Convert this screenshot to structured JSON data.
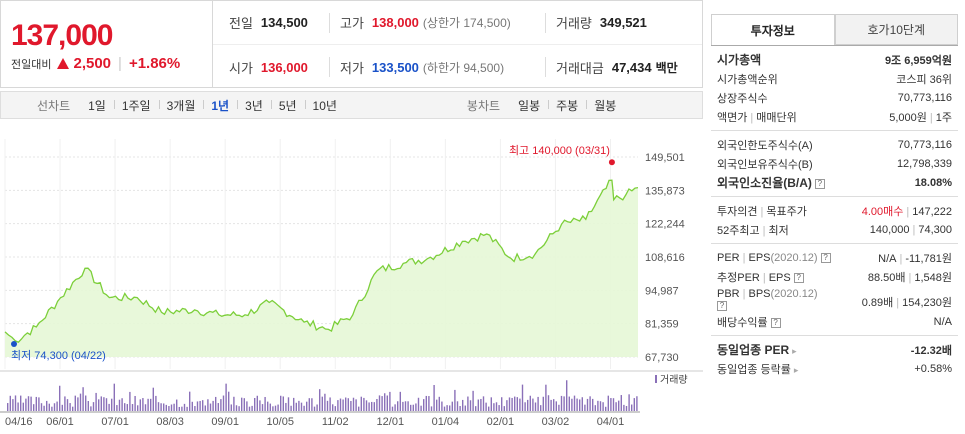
{
  "header": {
    "price": "137,000",
    "change_label": "전일대비",
    "change_amount": "2,500",
    "change_percent": "+1.86%",
    "up_color": "#e0182c",
    "down_color": "#1a52c8"
  },
  "stats": {
    "prev_close_label": "전일",
    "prev_close": "134,500",
    "high_label": "고가",
    "high": "138,000",
    "upper_limit": "(상한가 174,500)",
    "volume_label": "거래량",
    "volume": "349,521",
    "open_label": "시가",
    "open": "136,000",
    "low_label": "저가",
    "low": "133,500",
    "lower_limit": "(하한가 94,500)",
    "value_label": "거래대금",
    "value": "47,434",
    "value_unit": "백만"
  },
  "periods": {
    "line_label": "선차트",
    "line_items": [
      "1일",
      "1주일",
      "3개월",
      "1년",
      "3년",
      "5년",
      "10년"
    ],
    "selected": "1년",
    "candle_label": "봉차트",
    "candle_items": [
      "일봉",
      "주봉",
      "월봉"
    ]
  },
  "chart_data": {
    "type": "area",
    "x": [
      "2020-04-16",
      "2020-04-22",
      "2020-05-04",
      "2020-05-18",
      "2020-06-01",
      "2020-06-15",
      "2020-07-01",
      "2020-07-15",
      "2020-08-03",
      "2020-08-17",
      "2020-09-01",
      "2020-09-15",
      "2020-10-05",
      "2020-10-19",
      "2020-11-02",
      "2020-11-16",
      "2020-12-01",
      "2020-12-15",
      "2021-01-04",
      "2021-01-18",
      "2021-02-01",
      "2021-02-15",
      "2021-03-02",
      "2021-03-16",
      "2021-03-31",
      "2021-04-01",
      "2021-04-08",
      "2021-04-15"
    ],
    "values": [
      78000,
      74300,
      80000,
      92000,
      104000,
      92000,
      92000,
      86000,
      87000,
      85000,
      85000,
      90000,
      82000,
      79000,
      85000,
      103000,
      106000,
      108000,
      115000,
      118000,
      108000,
      110000,
      122000,
      124000,
      140000,
      132000,
      134000,
      137000
    ],
    "y_ticks": [
      "149,501",
      "135,873",
      "122,244",
      "108,616",
      "94,987",
      "81,359",
      "67,730"
    ],
    "x_ticks": [
      "04/16",
      "06/01",
      "07/01",
      "08/03",
      "09/01",
      "10/05",
      "11/02",
      "12/01",
      "01/04",
      "02/01",
      "03/02",
      "04/01"
    ],
    "ylim": [
      67730,
      149501
    ],
    "high_annotation": "최고 140,000 (03/31)",
    "low_annotation": "최저 74,300 (04/22)",
    "volume_label": "거래량",
    "line_color": "#7ccf3a",
    "fill_color": "#e6f7d6",
    "volume_color": "#8a70b8",
    "high_marker_color": "#e0182c",
    "low_marker_color": "#1a52c8"
  },
  "sidebar": {
    "tab_info": "투자정보",
    "tab_quote": "호가10단계",
    "market_cap_label": "시가총액",
    "market_cap": "9조 6,959억원",
    "cap_rank_label": "시가총액순위",
    "cap_rank": "코스피 36위",
    "shares_label": "상장주식수",
    "shares": "70,773,116",
    "par_label": "액면가",
    "unit_label": "매매단위",
    "par": "5,000원",
    "unit": "1주",
    "foreign_limit_label": "외국인한도주식수(A)",
    "foreign_limit": "70,773,116",
    "foreign_hold_label": "외국인보유주식수(B)",
    "foreign_hold": "12,798,339",
    "foreign_ratio_label": "외국인소진율(B/A)",
    "foreign_ratio": "18.08%",
    "opinion_label": "투자의견",
    "target_label": "목표주가",
    "opinion": "4.00매수",
    "target": "147,222",
    "w52_high_label": "52주최고",
    "w52_low_label": "최저",
    "w52_high": "140,000",
    "w52_low": "74,300",
    "per_label": "PER",
    "eps_label": "EPS",
    "per_year": "(2020.12)",
    "per": "N/A",
    "eps": "-11,781원",
    "est_per_label": "추정PER",
    "est_per": "88.50배",
    "est_eps": "1,548원",
    "pbr_label": "PBR",
    "bps_label": "BPS",
    "pbr_year": "(2020.12)",
    "pbr": "0.89배",
    "bps": "154,230원",
    "div_label": "배당수익률",
    "div": "N/A",
    "ind_per_label": "동일업종 PER",
    "ind_per": "-12.32배",
    "ind_rate_label": "동일업종 등락률",
    "ind_rate": "+0.58%",
    "sep": "|"
  }
}
